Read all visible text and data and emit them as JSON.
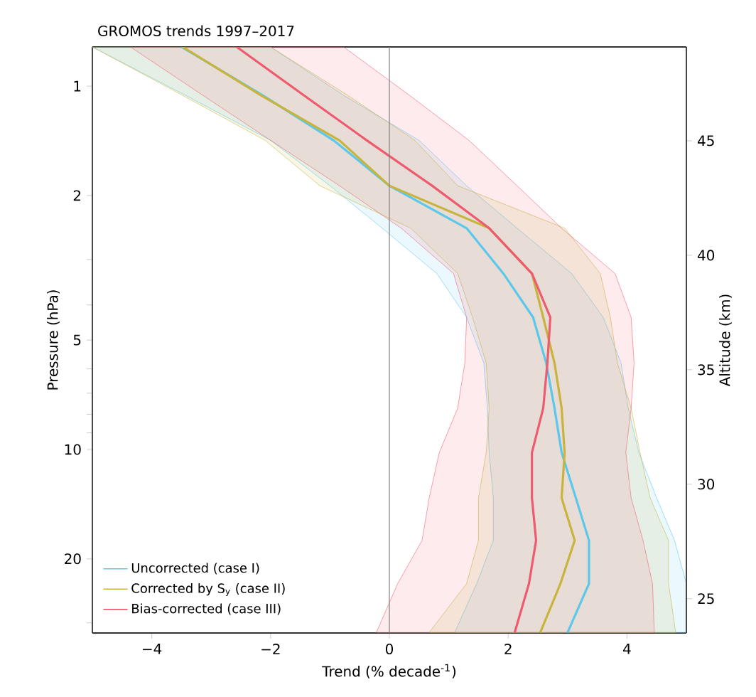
{
  "chart_data": {
    "type": "line",
    "orientation": "horizontal",
    "title": "GROMOS trends 1997–2017",
    "xlabel": "Trend (% decade$^{-1}$)",
    "ylabel": "Pressure (hPa)",
    "y2label": "Altitude (km)",
    "x": [
      0.78,
      1.06,
      1.41,
      1.88,
      2.46,
      3.28,
      4.33,
      5.78,
      7.7,
      10.2,
      13.6,
      17.8,
      23.4,
      31.9
    ],
    "series": [
      {
        "name": "Uncorrected (case I)",
        "color": "#5bc8eb",
        "values": [
          -3.5,
          -2.13,
          -0.94,
          0.0,
          1.3,
          1.92,
          2.42,
          2.64,
          2.78,
          2.9,
          3.14,
          3.36,
          3.36,
          3.0
        ],
        "lower": [
          -5.0,
          -3.43,
          -2.0,
          -1.0,
          -0.12,
          0.8,
          1.3,
          1.59,
          1.65,
          1.68,
          1.75,
          1.75,
          1.47,
          1.1
        ],
        "upper": [
          -2.0,
          -0.77,
          0.5,
          1.3,
          2.15,
          3.07,
          3.6,
          3.9,
          4.02,
          4.2,
          4.5,
          4.8,
          5.0,
          5.0
        ]
      },
      {
        "name": "Corrected by S$_{y}$ (case II)",
        "color": "#c8b43c",
        "values": [
          -3.48,
          -2.16,
          -0.84,
          0.0,
          1.68,
          2.4,
          2.59,
          2.78,
          2.9,
          2.95,
          2.9,
          3.12,
          2.88,
          2.54
        ],
        "lower": [
          -5.0,
          -3.48,
          -2.09,
          -1.17,
          0.36,
          1.15,
          1.4,
          1.63,
          1.68,
          1.63,
          1.5,
          1.5,
          1.3,
          0.67
        ],
        "upper": [
          -2.0,
          -0.7,
          0.43,
          1.15,
          2.95,
          3.55,
          3.72,
          3.84,
          4.07,
          4.22,
          4.39,
          4.7,
          4.7,
          4.82
        ]
      },
      {
        "name": "Bias-corrected (case III)",
        "color": "#ee5a6e",
        "values": [
          -2.57,
          -1.44,
          -0.38,
          0.72,
          1.68,
          2.4,
          2.71,
          2.66,
          2.59,
          2.4,
          2.4,
          2.47,
          2.35,
          2.11
        ],
        "lower": [
          -4.36,
          -3.14,
          -2.0,
          -0.84,
          0.2,
          1.08,
          1.3,
          1.27,
          1.15,
          0.84,
          0.67,
          0.55,
          0.14,
          -0.22
        ],
        "upper": [
          -0.77,
          0.34,
          1.34,
          2.15,
          2.9,
          3.8,
          4.07,
          4.12,
          4.07,
          3.98,
          4.07,
          4.27,
          4.43,
          4.46
        ]
      }
    ],
    "xlim": [
      -5,
      5
    ],
    "xticks": [
      {
        "value": -4,
        "label": "−4"
      },
      {
        "value": -2,
        "label": "−2"
      },
      0,
      2,
      4
    ],
    "ylim": [
      32,
      0.78
    ],
    "yticks": [
      1,
      2,
      {
        "value": 3,
        "label": null
      },
      {
        "value": 4,
        "label": null
      },
      5,
      {
        "value": 6,
        "label": null
      },
      {
        "value": 7,
        "label": null
      },
      {
        "value": 8,
        "label": null
      },
      {
        "value": 9,
        "label": null
      },
      10,
      20,
      {
        "value": 30,
        "label": null
      }
    ],
    "log": "y",
    "y2lim": [
      23.5,
      49.1
    ],
    "y2ticks": [
      25,
      30,
      35,
      40,
      45
    ],
    "ref_lines": [
      {
        "axis": "x",
        "value": 0,
        "color": "#808080"
      }
    ],
    "legend": "bottom left"
  }
}
